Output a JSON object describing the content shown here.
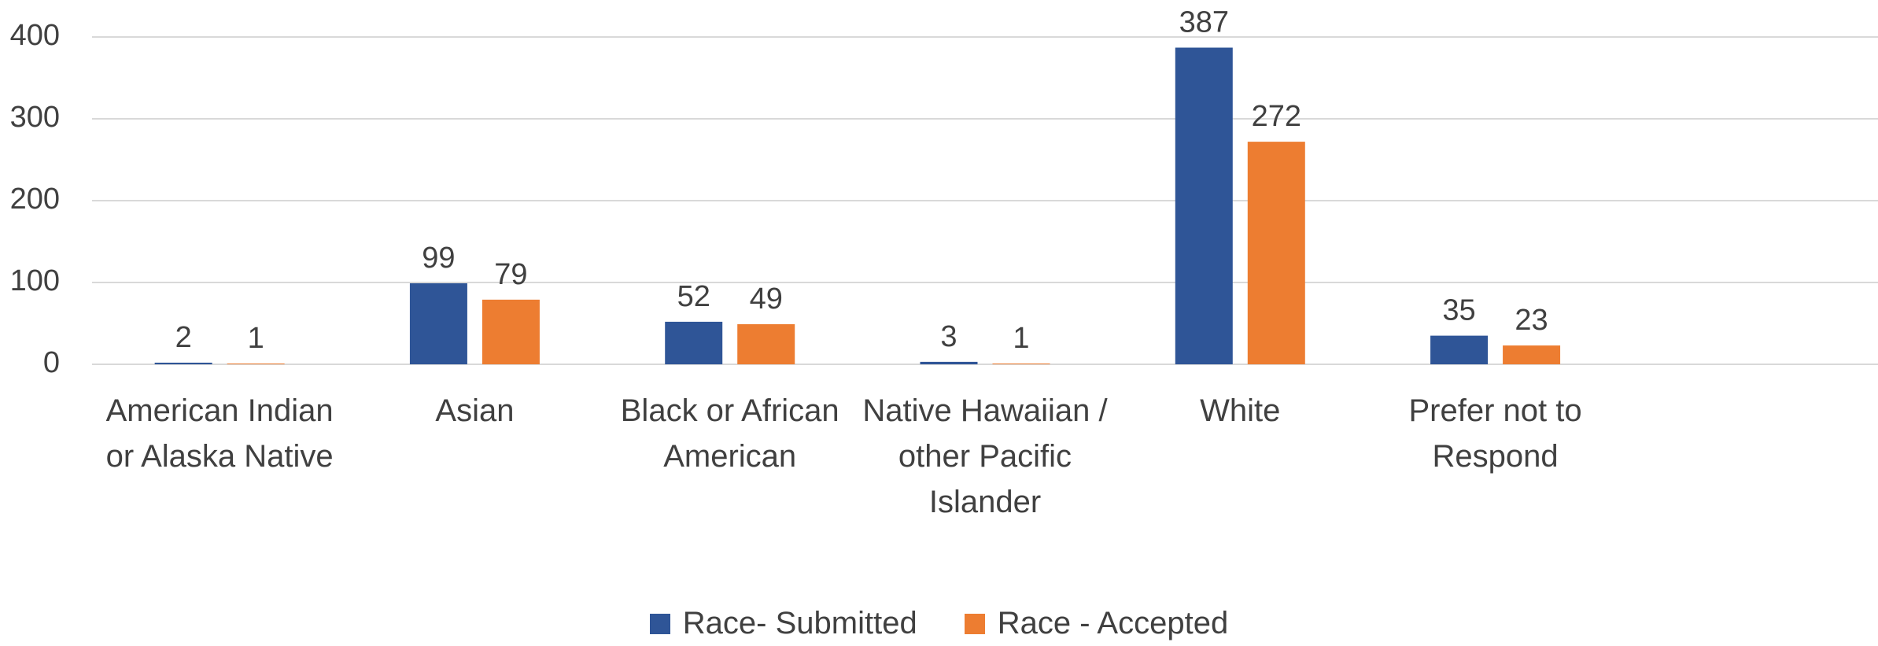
{
  "chart_data": {
    "type": "bar",
    "categories": [
      "American Indian or Alaska Native",
      "Asian",
      "Black or African American",
      "Native Hawaiian / other Pacific Islander",
      "White",
      "Prefer not to Respond",
      null
    ],
    "series": [
      {
        "name": "Race- Submitted",
        "color": "#2f5597",
        "values": [
          2,
          99,
          52,
          3,
          387,
          35,
          null
        ]
      },
      {
        "name": "Race - Accepted",
        "color": "#ed7d31",
        "values": [
          1,
          79,
          49,
          1,
          272,
          23,
          null
        ]
      }
    ],
    "ylim": [
      0,
      400
    ],
    "yticks": [
      0,
      100,
      200,
      300,
      400
    ],
    "grid": true,
    "legend": "bottom"
  }
}
